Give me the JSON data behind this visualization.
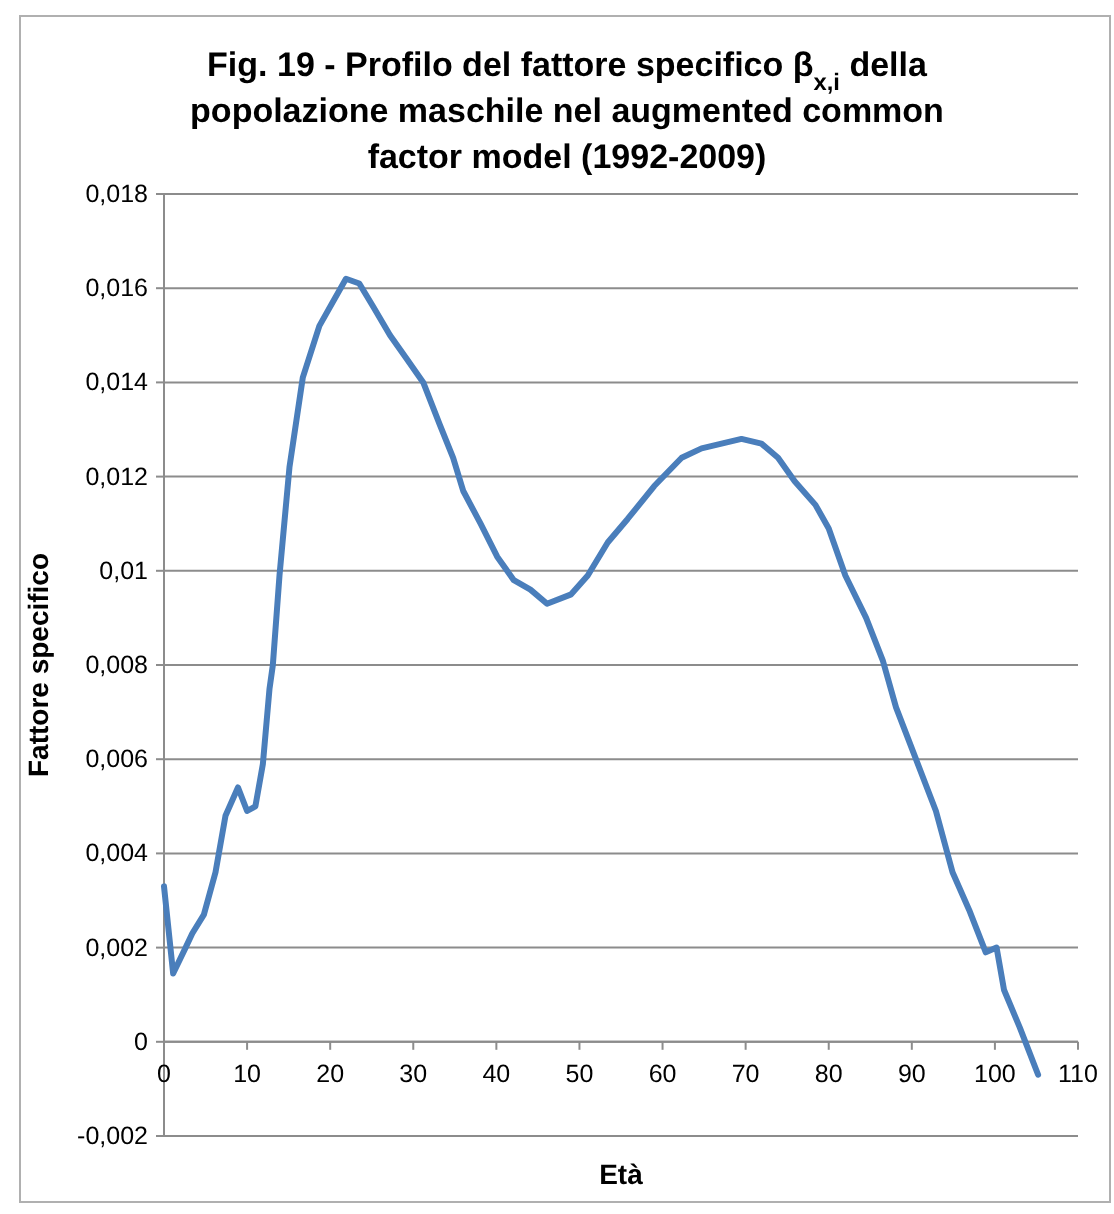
{
  "chart_data": {
    "type": "line",
    "title": "Fig.  19 -  Profilo del fattore  specifico  β$_{x,i}$ della popolazione maschile nel  augmented common factor model (1992-2009)",
    "xlabel": "Età",
    "ylabel": "Fattore specifico",
    "xlim": [
      0,
      110
    ],
    "xticks": [
      0,
      10,
      20,
      30,
      40,
      50,
      60,
      70,
      80,
      90,
      100,
      110
    ],
    "ylim": [
      -0.002,
      0.018
    ],
    "yticks": [
      {
        "value": -0.002,
        "label": "-0,002"
      },
      {
        "value": 0,
        "label": "0"
      },
      {
        "value": 0.002,
        "label": "0,002"
      },
      {
        "value": 0.004,
        "label": "0,004"
      },
      {
        "value": 0.006,
        "label": "0,006"
      },
      {
        "value": 0.008,
        "label": "0,008"
      },
      {
        "value": 0.01,
        "label": "0,01"
      },
      {
        "value": 0.012,
        "label": "0,012"
      },
      {
        "value": 0.014,
        "label": "0,014"
      },
      {
        "value": 0.016,
        "label": "0,016"
      },
      {
        "value": 0.018,
        "label": "0,018"
      }
    ],
    "grid": "y",
    "marker": "none",
    "line_style": "solid",
    "series": [
      {
        "color": "#4a7ebb",
        "x": [
          0,
          1.1,
          2.6,
          3.4,
          4.8,
          6.2,
          7.4,
          8.9,
          10,
          11,
          11.9,
          12.7,
          13.1,
          13.9,
          15.1,
          16.7,
          18.7,
          20.3,
          21.9,
          23.5,
          25.2,
          27.2,
          29.2,
          31.2,
          33.2,
          34.8,
          36,
          38.1,
          40.1,
          42.1,
          44.1,
          46.1,
          49,
          51,
          53.4,
          55.8,
          59,
          62.3,
          64.7,
          67.1,
          69.5,
          71.9,
          73.9,
          75.9,
          78.4,
          80,
          82,
          84.5,
          86.5,
          88.1,
          90.5,
          92.9,
          94.9,
          96.9,
          98.9,
          100.2,
          101.1,
          103,
          105.2
        ],
        "values": [
          0.0033,
          0.00145,
          0.002,
          0.0023,
          0.0027,
          0.0036,
          0.0048,
          0.0054,
          0.0049,
          0.005,
          0.0059,
          0.0075,
          0.008,
          0.0099,
          0.0122,
          0.0141,
          0.0152,
          0.0157,
          0.0162,
          0.0161,
          0.0156,
          0.015,
          0.0145,
          0.014,
          0.0131,
          0.0124,
          0.0117,
          0.011,
          0.0103,
          0.0098,
          0.0096,
          0.0093,
          0.0095,
          0.0099,
          0.0106,
          0.0111,
          0.0118,
          0.0124,
          0.0126,
          0.0127,
          0.0128,
          0.0127,
          0.0124,
          0.0119,
          0.0114,
          0.0109,
          0.0099,
          0.009,
          0.0081,
          0.0071,
          0.006,
          0.0049,
          0.0036,
          0.0028,
          0.0019,
          0.002,
          0.0011,
          0.0003,
          -0.0007
        ]
      }
    ]
  }
}
